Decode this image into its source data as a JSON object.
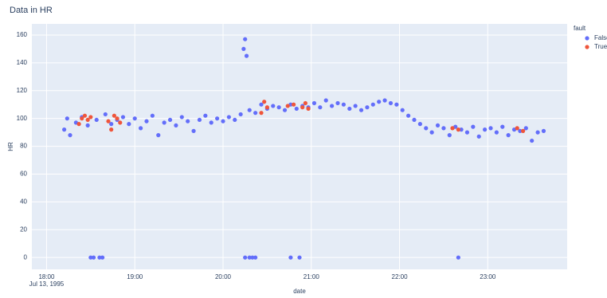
{
  "chart_data": {
    "type": "scatter",
    "title": "Data in HR",
    "x_label": "date",
    "y_label": "HR",
    "x_date_label": "Jul 13, 1995",
    "legend_title": "fault",
    "legend_position": "top-right-outside",
    "grid": true,
    "xlim": [
      "1995-07-13 17:50",
      "1995-07-13 23:54"
    ],
    "xticks": [
      {
        "value": "1995-07-13 18:00",
        "label": "18:00"
      },
      {
        "value": "1995-07-13 19:00",
        "label": "19:00"
      },
      {
        "value": "1995-07-13 20:00",
        "label": "20:00"
      },
      {
        "value": "1995-07-13 21:00",
        "label": "21:00"
      },
      {
        "value": "1995-07-13 22:00",
        "label": "22:00"
      },
      {
        "value": "1995-07-13 23:00",
        "label": "23:00"
      }
    ],
    "ylim": [
      -8.5,
      168
    ],
    "yticks": [
      0,
      20,
      40,
      60,
      80,
      100,
      120,
      140,
      160
    ],
    "series": [
      {
        "name": "False",
        "color": "#636efa",
        "x": [
          "1995-07-13 18:12",
          "1995-07-13 18:14",
          "1995-07-13 18:16",
          "1995-07-13 18:20",
          "1995-07-13 18:24",
          "1995-07-13 18:28",
          "1995-07-13 18:30",
          "1995-07-13 18:32",
          "1995-07-13 18:34",
          "1995-07-13 18:36",
          "1995-07-13 18:38",
          "1995-07-13 18:40",
          "1995-07-13 18:44",
          "1995-07-13 18:48",
          "1995-07-13 18:52",
          "1995-07-13 18:56",
          "1995-07-13 19:00",
          "1995-07-13 19:04",
          "1995-07-13 19:08",
          "1995-07-13 19:12",
          "1995-07-13 19:16",
          "1995-07-13 19:20",
          "1995-07-13 19:24",
          "1995-07-13 19:28",
          "1995-07-13 19:32",
          "1995-07-13 19:36",
          "1995-07-13 19:40",
          "1995-07-13 19:44",
          "1995-07-13 19:48",
          "1995-07-13 19:52",
          "1995-07-13 19:56",
          "1995-07-13 20:00",
          "1995-07-13 20:04",
          "1995-07-13 20:08",
          "1995-07-13 20:12",
          "1995-07-13 20:14",
          "1995-07-13 20:15",
          "1995-07-13 20:16",
          "1995-07-13 20:15",
          "1995-07-13 20:18",
          "1995-07-13 20:20",
          "1995-07-13 20:22",
          "1995-07-13 20:18",
          "1995-07-13 20:22",
          "1995-07-13 20:26",
          "1995-07-13 20:30",
          "1995-07-13 20:34",
          "1995-07-13 20:38",
          "1995-07-13 20:42",
          "1995-07-13 20:46",
          "1995-07-13 20:52",
          "1995-07-13 20:46",
          "1995-07-13 20:50",
          "1995-07-13 20:54",
          "1995-07-13 20:58",
          "1995-07-13 21:02",
          "1995-07-13 21:06",
          "1995-07-13 21:10",
          "1995-07-13 21:14",
          "1995-07-13 21:18",
          "1995-07-13 21:22",
          "1995-07-13 21:26",
          "1995-07-13 21:30",
          "1995-07-13 21:34",
          "1995-07-13 21:38",
          "1995-07-13 21:42",
          "1995-07-13 21:46",
          "1995-07-13 21:50",
          "1995-07-13 21:54",
          "1995-07-13 21:58",
          "1995-07-13 22:02",
          "1995-07-13 22:06",
          "1995-07-13 22:10",
          "1995-07-13 22:14",
          "1995-07-13 22:18",
          "1995-07-13 22:22",
          "1995-07-13 22:26",
          "1995-07-13 22:30",
          "1995-07-13 22:34",
          "1995-07-13 22:38",
          "1995-07-13 22:40",
          "1995-07-13 22:42",
          "1995-07-13 22:46",
          "1995-07-13 22:50",
          "1995-07-13 22:54",
          "1995-07-13 22:58",
          "1995-07-13 23:02",
          "1995-07-13 23:06",
          "1995-07-13 23:10",
          "1995-07-13 23:14",
          "1995-07-13 23:18",
          "1995-07-13 23:22",
          "1995-07-13 23:26",
          "1995-07-13 23:30",
          "1995-07-13 23:34",
          "1995-07-13 23:38"
        ],
        "values": [
          92,
          100,
          88,
          97,
          101,
          95,
          0,
          0,
          99,
          0,
          0,
          103,
          96,
          99,
          101,
          96,
          100,
          93,
          98,
          102,
          88,
          97,
          99,
          95,
          101,
          98,
          91,
          99,
          102,
          97,
          100,
          98,
          101,
          99,
          103,
          150,
          157,
          145,
          0,
          0,
          0,
          0,
          106,
          104,
          110,
          107,
          109,
          108,
          106,
          0,
          0,
          110,
          107,
          109,
          108,
          111,
          108,
          113,
          109,
          111,
          110,
          107,
          109,
          106,
          108,
          110,
          112,
          113,
          111,
          110,
          106,
          102,
          99,
          96,
          93,
          90,
          95,
          93,
          88,
          94,
          0,
          92,
          90,
          94,
          87,
          92,
          93,
          90,
          94,
          88,
          92,
          91,
          93,
          84,
          90,
          91
        ]
      },
      {
        "name": "True",
        "color": "#ef553b",
        "x": [
          "1995-07-13 18:22",
          "1995-07-13 18:24",
          "1995-07-13 18:26",
          "1995-07-13 18:28",
          "1995-07-13 18:30",
          "1995-07-13 18:42",
          "1995-07-13 18:44",
          "1995-07-13 18:46",
          "1995-07-13 18:48",
          "1995-07-13 18:50",
          "1995-07-13 20:26",
          "1995-07-13 20:28",
          "1995-07-13 20:30",
          "1995-07-13 20:44",
          "1995-07-13 20:48",
          "1995-07-13 20:54",
          "1995-07-13 20:56",
          "1995-07-13 20:58",
          "1995-07-13 22:36",
          "1995-07-13 22:40",
          "1995-07-13 23:20",
          "1995-07-13 23:24"
        ],
        "values": [
          96,
          100,
          102,
          99,
          101,
          98,
          92,
          102,
          100,
          97,
          104,
          112,
          108,
          109,
          110,
          108,
          111,
          107,
          93,
          92,
          93,
          91
        ]
      }
    ]
  }
}
